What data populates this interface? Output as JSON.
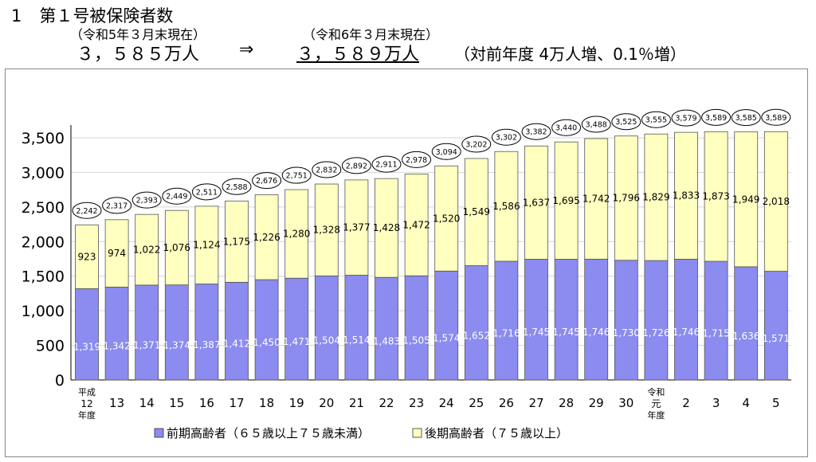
{
  "header": {
    "title_number": "1",
    "title": "第１号被保険者数",
    "prev_date": "（令和5年３月末現在）",
    "prev_value": "３，５８５万人",
    "arrow": "⇒",
    "curr_date": "（令和6年３月末現在）",
    "curr_value": "３，５８９万人",
    "change": "（対前年度 4万人増、0.1％増）"
  },
  "chart_data": {
    "type": "bar",
    "stacked": true,
    "categories": [
      [
        "平成",
        "12",
        "年度"
      ],
      [
        "13"
      ],
      [
        "14"
      ],
      [
        "15"
      ],
      [
        "16"
      ],
      [
        "17"
      ],
      [
        "18"
      ],
      [
        "19"
      ],
      [
        "20"
      ],
      [
        "21"
      ],
      [
        "22"
      ],
      [
        "23"
      ],
      [
        "24"
      ],
      [
        "25"
      ],
      [
        "26"
      ],
      [
        "27"
      ],
      [
        "28"
      ],
      [
        "29"
      ],
      [
        "30"
      ],
      [
        "令和",
        "元",
        "年度"
      ],
      [
        "2"
      ],
      [
        "3"
      ],
      [
        "4"
      ],
      [
        "5"
      ]
    ],
    "series": [
      {
        "name": "前期高齢者（６５歳以上７５歳未満）",
        "color": "#8b8bf0",
        "labels": [
          "1,319",
          "1,342",
          "1,371",
          "1,374",
          "1,387",
          "1,412",
          "1,450",
          "1,471",
          "1,504",
          "1,514",
          "1,483",
          "1,505",
          "1,574",
          "1,652",
          "1,716",
          "1,745",
          "1,745",
          "1,746",
          "1,730",
          "1,726",
          "1,746",
          "1,715",
          "1,636",
          "1,571"
        ],
        "values": [
          1319,
          1342,
          1371,
          1374,
          1387,
          1412,
          1450,
          1471,
          1504,
          1514,
          1483,
          1505,
          1574,
          1652,
          1716,
          1745,
          1745,
          1746,
          1730,
          1726,
          1746,
          1715,
          1636,
          1571
        ]
      },
      {
        "name": "後期高齢者（７５歳以上）",
        "color": "#ffffc0",
        "labels": [
          "923",
          "974",
          "1,022",
          "1,076",
          "1,124",
          "1,175",
          "1,226",
          "1,280",
          "1,328",
          "1,377",
          "1,428",
          "1,472",
          "1,520",
          "1,549",
          "1,586",
          "1,637",
          "1,695",
          "1,742",
          "1,796",
          "1,829",
          "1,833",
          "1,873",
          "1,949",
          "2,018"
        ],
        "values": [
          923,
          974,
          1022,
          1076,
          1124,
          1175,
          1226,
          1280,
          1328,
          1377,
          1428,
          1472,
          1520,
          1549,
          1586,
          1637,
          1695,
          1742,
          1796,
          1829,
          1833,
          1873,
          1949,
          2018
        ]
      }
    ],
    "totals": [
      "2,242",
      "2,317",
      "2,393",
      "2,449",
      "2,511",
      "2,588",
      "2,676",
      "2,751",
      "2,832",
      "2,892",
      "2,911",
      "2,978",
      "3,094",
      "3,202",
      "3,302",
      "3,382",
      "3,440",
      "3,488",
      "3,525",
      "3,555",
      "3,579",
      "3,589",
      "3,585",
      "3,589"
    ],
    "y_ticks": [
      "0",
      "500",
      "1,000",
      "1,500",
      "2,000",
      "2,500",
      "3,000",
      "3,500"
    ],
    "ylim": [
      0,
      3500
    ],
    "legend_position": "bottom"
  }
}
